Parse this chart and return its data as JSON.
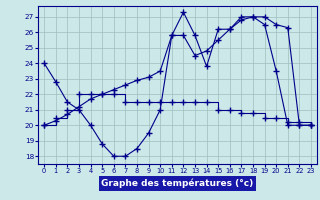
{
  "xlabel": "Graphe des températures (°c)",
  "hours": [
    0,
    1,
    2,
    3,
    4,
    5,
    6,
    7,
    8,
    9,
    10,
    11,
    12,
    13,
    14,
    15,
    16,
    17,
    18,
    19,
    20,
    21,
    22,
    23
  ],
  "line1": [
    24.0,
    22.8,
    21.5,
    21.0,
    20.0,
    18.8,
    18.0,
    18.0,
    18.5,
    19.5,
    21.0,
    25.8,
    27.3,
    25.8,
    23.8,
    26.2,
    26.2,
    27.0,
    27.0,
    26.5,
    23.5,
    20.0,
    20.0,
    20.0
  ],
  "line2": [
    20.0,
    20.5,
    21.0,
    22.0,
    22.0,
    22.0,
    22.0,
    21.5,
    21.5,
    21.5,
    21.5,
    21.5,
    21.5,
    21.5,
    21.5,
    21.0,
    21.0,
    20.8,
    20.8,
    20.5,
    20.5,
    20.2,
    20.2,
    20.0
  ],
  "line3": [
    20.0,
    20.3,
    20.7,
    21.2,
    21.7,
    22.0,
    22.3,
    22.6,
    22.9,
    23.1,
    23.5,
    25.8,
    25.8,
    24.5,
    24.8,
    25.5,
    26.2,
    26.8,
    27.0,
    27.0,
    26.5,
    26.3,
    20.0,
    20.0
  ],
  "ylim": [
    17.5,
    27.7
  ],
  "yticks": [
    18,
    19,
    20,
    21,
    22,
    23,
    24,
    25,
    26,
    27
  ],
  "xlim": [
    -0.5,
    23.5
  ],
  "line_color": "#00008B",
  "bg_color": "#cce8e8",
  "grid_color": "#a0bebe",
  "xlabel_bg": "#1818a8",
  "xlabel_color": "#ffffff"
}
